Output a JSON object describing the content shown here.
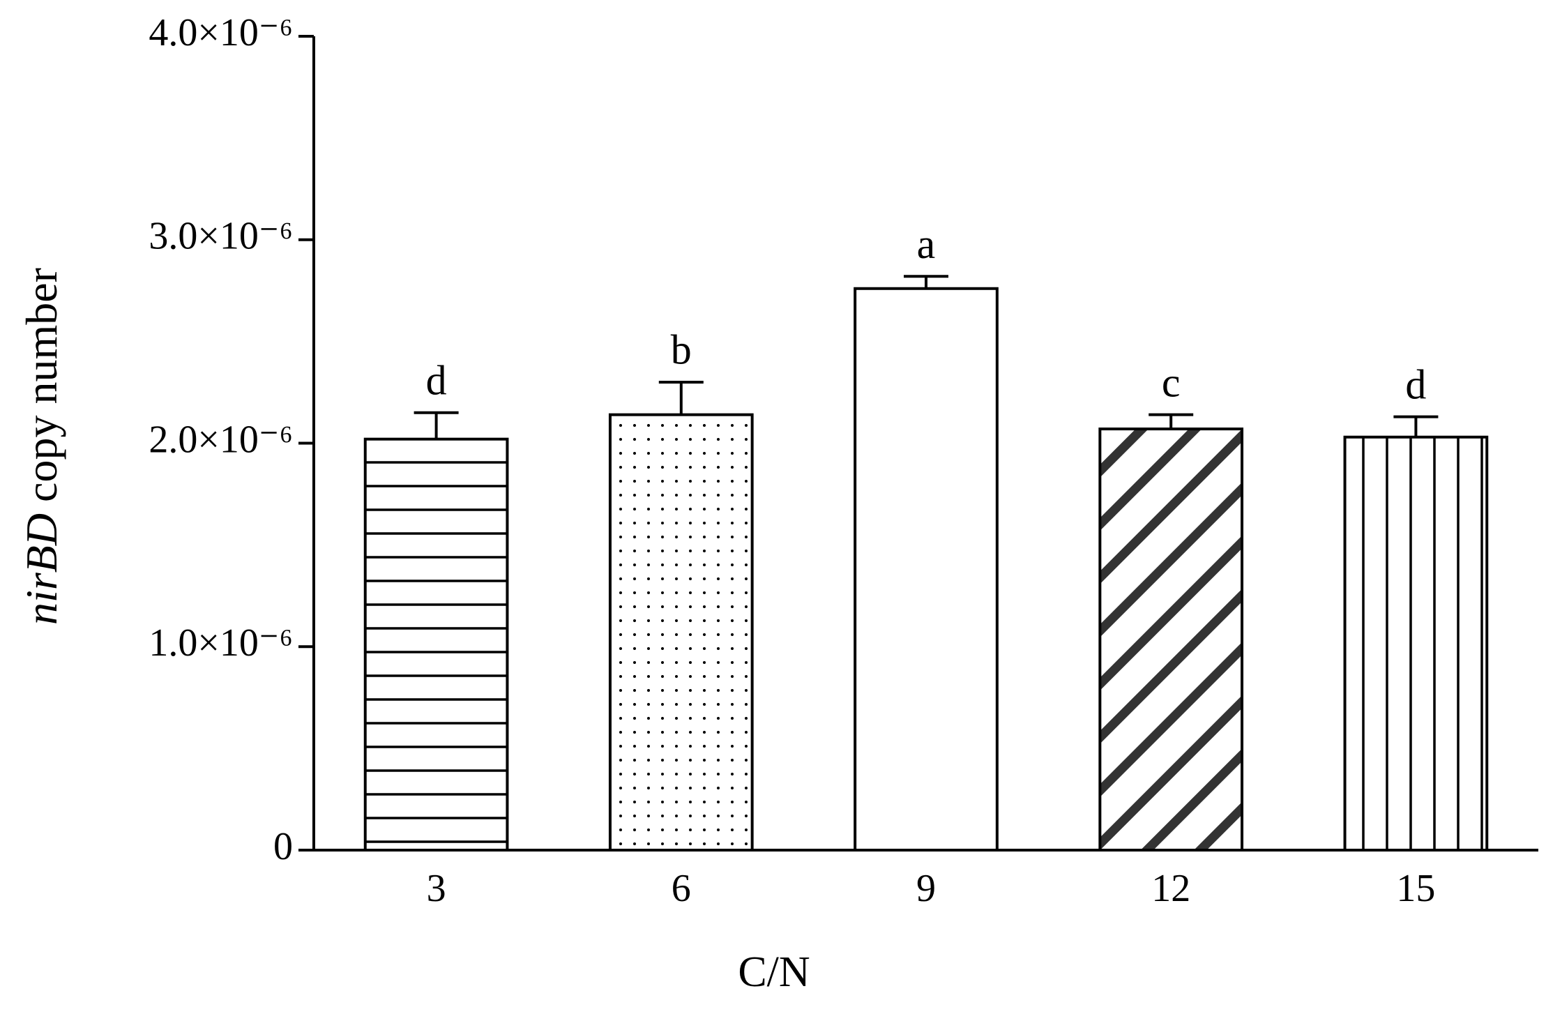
{
  "chart_data": {
    "type": "bar",
    "x_label": "C/N",
    "y_label_gene": "nirBD",
    "y_label_rest": "copy number",
    "categories": [
      "3",
      "6",
      "9",
      "12",
      "15"
    ],
    "values": [
      2.02e-06,
      2.14e-06,
      2.76e-06,
      2.07e-06,
      2.03e-06
    ],
    "errors": [
      1.3e-07,
      1.6e-07,
      6e-08,
      7e-08,
      1e-07
    ],
    "annotations": [
      "d",
      "b",
      "a",
      "c",
      "d"
    ],
    "patterns": [
      "horizontal",
      "dots",
      "none",
      "diagonal",
      "vertical"
    ],
    "color": "#000000",
    "ylim": [
      0,
      4e-06
    ],
    "yticks": [
      0,
      {
        "value": 1e-06,
        "label": "1.0×10⁻⁶"
      },
      {
        "value": 2e-06,
        "label": "2.0×10⁻⁶"
      },
      {
        "value": 3e-06,
        "label": "3.0×10⁻⁶"
      },
      {
        "value": 4e-06,
        "label": "4.0×10⁻⁶"
      }
    ],
    "grid": false
  }
}
